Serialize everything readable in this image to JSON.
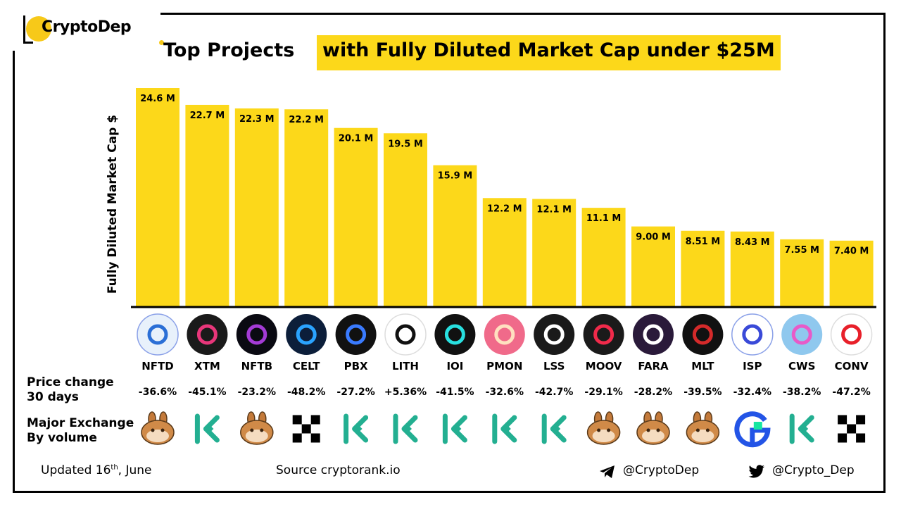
{
  "logo": {
    "text": "CryptoDep"
  },
  "title": {
    "part1": "Top Projects",
    "part2": "with Fully Diluted Market Cap under $25M"
  },
  "colors": {
    "bar": "#fcd81a",
    "accent": "#f7c919",
    "axis": "#000000"
  },
  "chart_data": {
    "type": "bar",
    "title": "Top Projects with Fully Diluted Market Cap under $25M",
    "ylabel": "Fully Diluted Market Cap $",
    "xlabel": "",
    "ylim": [
      0,
      25
    ],
    "grid": false,
    "categories": [
      "NFTD",
      "XTM",
      "NFTB",
      "CELT",
      "PBX",
      "LITH",
      "IOI",
      "PMON",
      "LSS",
      "MOOV",
      "FARA",
      "MLT",
      "ISP",
      "CWS",
      "CONV"
    ],
    "values": [
      24.6,
      22.7,
      22.3,
      22.2,
      20.1,
      19.5,
      15.9,
      12.2,
      12.1,
      11.1,
      9.0,
      8.51,
      8.43,
      7.55,
      7.4
    ],
    "value_labels": [
      "24.6 M",
      "22.7 M",
      "22.3 M",
      "22.2 M",
      "20.1 M",
      "19.5 M",
      "15.9 M",
      "12.2 M",
      "12.1 M",
      "11.1 M",
      "9.00 M",
      "8.51 M",
      "8.43 M",
      "7.55 M",
      "7.40 M"
    ],
    "price_change_30d": [
      "-36.6%",
      "-45.1%",
      "-23.2%",
      "-48.2%",
      "-27.2%",
      "+5.36%",
      "-41.5%",
      "-32.6%",
      "-42.7%",
      "-29.1%",
      "-28.2%",
      "-39.5%",
      "-32.4%",
      "-38.2%",
      "-47.2%"
    ],
    "major_exchange": [
      "pancakeswap",
      "kucoin",
      "pancakeswap",
      "okx",
      "kucoin",
      "kucoin",
      "kucoin",
      "kucoin",
      "kucoin",
      "pancakeswap",
      "pancakeswap",
      "pancakeswap",
      "gate",
      "kucoin",
      "okx"
    ],
    "token_icons": [
      "nftd-icon",
      "xtm-icon",
      "nftb-icon",
      "celt-icon",
      "pbx-icon",
      "lith-icon",
      "ioi-icon",
      "pmon-icon",
      "lss-icon",
      "moov-icon",
      "fara-icon",
      "mlt-icon",
      "isp-icon",
      "cws-icon",
      "conv-icon"
    ]
  },
  "rows": {
    "price_change": "Price change\n30 days",
    "price_change_1": "Price change",
    "price_change_2": "30 days",
    "exchange_1": "Major Exchange",
    "exchange_2": "By volume"
  },
  "footer": {
    "updated_prefix": "Updated 16",
    "updated_sup": "th",
    "updated_suffix": ", June",
    "source": "Source  cryptorank.io",
    "telegram": "@CryptoDep",
    "twitter": "@Crypto_Dep"
  }
}
